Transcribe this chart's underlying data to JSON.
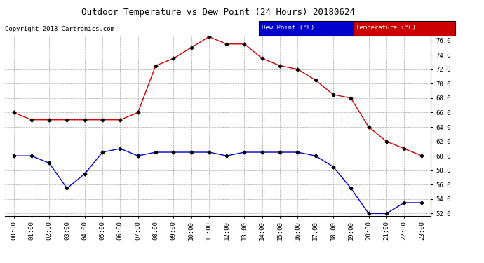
{
  "title": "Outdoor Temperature vs Dew Point (24 Hours) 20180624",
  "copyright": "Copyright 2018 Cartronics.com",
  "hours": [
    "00:00",
    "01:00",
    "02:00",
    "03:00",
    "04:00",
    "05:00",
    "06:00",
    "07:00",
    "08:00",
    "09:00",
    "10:00",
    "11:00",
    "12:00",
    "13:00",
    "14:00",
    "15:00",
    "16:00",
    "17:00",
    "18:00",
    "19:00",
    "20:00",
    "21:00",
    "22:00",
    "23:00"
  ],
  "temperature": [
    66.0,
    65.0,
    65.0,
    65.0,
    65.0,
    65.0,
    65.0,
    66.0,
    72.5,
    73.5,
    75.0,
    76.5,
    75.5,
    75.5,
    73.5,
    72.5,
    72.0,
    70.5,
    68.5,
    68.0,
    64.0,
    62.0,
    61.0,
    60.0
  ],
  "dew_point": [
    60.0,
    60.0,
    59.0,
    55.5,
    57.5,
    60.5,
    61.0,
    60.0,
    60.5,
    60.5,
    60.5,
    60.5,
    60.0,
    60.5,
    60.5,
    60.5,
    60.5,
    60.0,
    58.5,
    55.5,
    52.0,
    52.0,
    53.5,
    53.5
  ],
  "temp_color": "#cc0000",
  "dew_color": "#0000cc",
  "ylim_min": 52.0,
  "ylim_max": 76.0,
  "ytick_step": 2.0,
  "bg_color": "#ffffff",
  "grid_color": "#aaaaaa",
  "legend_dew_label": "Dew Point (°F)",
  "legend_temp_label": "Temperature (°F)",
  "legend_dew_bg": "#0000cc",
  "legend_temp_bg": "#cc0000",
  "marker": "D",
  "markersize": 2.5,
  "linewidth": 1.0,
  "title_fontsize": 9,
  "tick_fontsize": 6.5,
  "copyright_fontsize": 6.5,
  "legend_fontsize": 6.5
}
